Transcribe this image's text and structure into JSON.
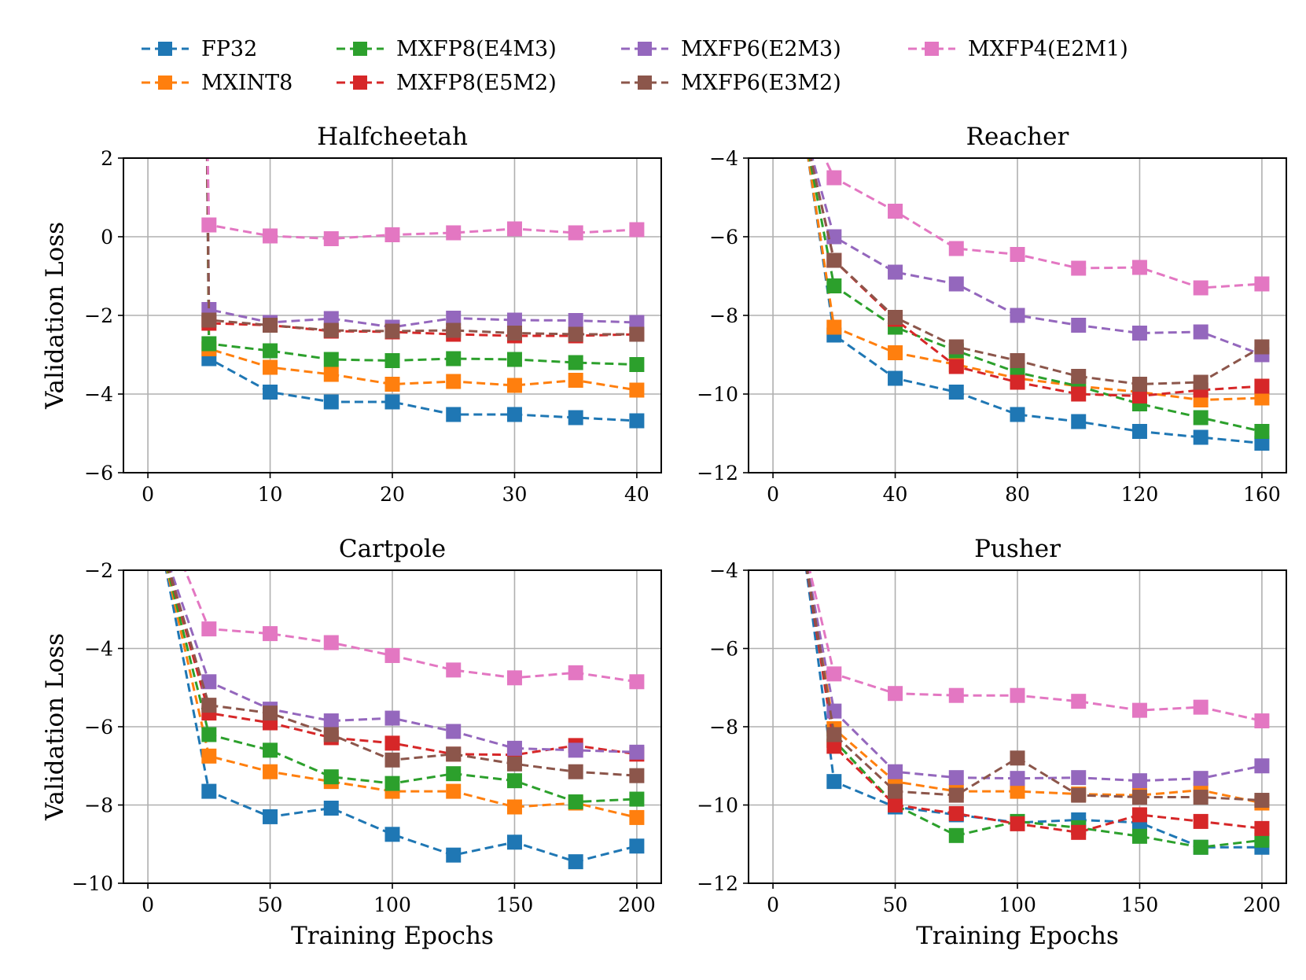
{
  "legend": [
    {
      "key": "fp32",
      "label": "FP32",
      "color": "#1f77b4"
    },
    {
      "key": "mxint8",
      "label": "MXINT8",
      "color": "#ff7f0e"
    },
    {
      "key": "e4m3",
      "label": "MXFP8(E4M3)",
      "color": "#2ca02c"
    },
    {
      "key": "e5m2",
      "label": "MXFP8(E5M2)",
      "color": "#d62728"
    },
    {
      "key": "e2m3",
      "label": "MXFP6(E2M3)",
      "color": "#9467bd"
    },
    {
      "key": "e3m2",
      "label": "MXFP6(E3M2)",
      "color": "#8c564b"
    },
    {
      "key": "mxfp4",
      "label": "MXFP4(E2M1)",
      "color": "#e377c2"
    }
  ],
  "chart_data": [
    {
      "type": "line",
      "title": "Halfcheetah",
      "ylabel": "Validation Loss",
      "xlabel": "",
      "xlim": [
        -2,
        42
      ],
      "ylim": [
        -6,
        2
      ],
      "xticks": [
        0,
        10,
        20,
        30,
        40
      ],
      "yticks": [
        -6,
        -4,
        -2,
        0,
        2
      ],
      "ytick_labels": [
        "−6",
        "−4",
        "−2",
        "0",
        "2"
      ],
      "x": [
        5,
        10,
        15,
        20,
        25,
        30,
        35,
        40
      ],
      "series": [
        {
          "key": "fp32",
          "name": "FP32",
          "lead": [
            [
              4.8,
              3.5
            ]
          ],
          "values": [
            -3.1,
            -3.95,
            -4.2,
            -4.2,
            -4.52,
            -4.52,
            -4.6,
            -4.68
          ]
        },
        {
          "key": "mxint8",
          "name": "MXINT8",
          "lead": [
            [
              4.8,
              3.5
            ]
          ],
          "values": [
            -2.85,
            -3.32,
            -3.5,
            -3.75,
            -3.68,
            -3.78,
            -3.65,
            -3.9
          ]
        },
        {
          "key": "e4m3",
          "name": "MXFP8(E4M3)",
          "lead": [
            [
              4.8,
              3.5
            ]
          ],
          "values": [
            -2.72,
            -2.9,
            -3.12,
            -3.15,
            -3.1,
            -3.12,
            -3.2,
            -3.25
          ]
        },
        {
          "key": "e5m2",
          "name": "MXFP8(E5M2)",
          "lead": [
            [
              4.8,
              3.5
            ]
          ],
          "values": [
            -2.2,
            -2.25,
            -2.4,
            -2.42,
            -2.48,
            -2.52,
            -2.52,
            -2.48
          ]
        },
        {
          "key": "e2m3",
          "name": "MXFP6(E2M3)",
          "lead": [
            [
              4.8,
              3.5
            ]
          ],
          "values": [
            -1.85,
            -2.18,
            -2.08,
            -2.3,
            -2.07,
            -2.12,
            -2.13,
            -2.18
          ]
        },
        {
          "key": "e3m2",
          "name": "MXFP6(E3M2)",
          "lead": [
            [
              4.8,
              3.5
            ]
          ],
          "values": [
            -2.12,
            -2.25,
            -2.38,
            -2.4,
            -2.38,
            -2.45,
            -2.48,
            -2.48
          ]
        },
        {
          "key": "mxfp4",
          "name": "MXFP4(E2M1)",
          "lead": [
            [
              4.8,
              3.5
            ]
          ],
          "values": [
            0.3,
            0.02,
            -0.05,
            0.05,
            0.1,
            0.2,
            0.1,
            0.18
          ]
        }
      ]
    },
    {
      "type": "line",
      "title": "Reacher",
      "ylabel": "",
      "xlabel": "",
      "xlim": [
        -8,
        168
      ],
      "ylim": [
        -12,
        -4
      ],
      "xticks": [
        0,
        40,
        80,
        120,
        160
      ],
      "yticks": [
        -12,
        -10,
        -8,
        -6,
        -4
      ],
      "ytick_labels": [
        "−12",
        "−10",
        "−8",
        "−6",
        "−4"
      ],
      "x": [
        20,
        40,
        60,
        80,
        100,
        120,
        140,
        160
      ],
      "series": [
        {
          "key": "fp32",
          "name": "FP32",
          "lead": [
            [
              10,
              -3.2
            ]
          ],
          "values": [
            -8.5,
            -9.6,
            -9.95,
            -10.52,
            -10.7,
            -10.95,
            -11.1,
            -11.25
          ]
        },
        {
          "key": "mxint8",
          "name": "MXINT8",
          "lead": [
            [
              10,
              -3.2
            ]
          ],
          "values": [
            -8.3,
            -8.95,
            -9.25,
            -9.6,
            -9.8,
            -9.95,
            -10.15,
            -10.1
          ]
        },
        {
          "key": "e4m3",
          "name": "MXFP8(E4M3)",
          "lead": [
            [
              10,
              -3.2
            ]
          ],
          "values": [
            -7.25,
            -8.3,
            -8.9,
            -9.45,
            -9.8,
            -10.25,
            -10.6,
            -10.95
          ]
        },
        {
          "key": "e5m2",
          "name": "MXFP8(E5M2)",
          "lead": [
            [
              10,
              -3.2
            ]
          ],
          "values": [
            -6.6,
            -8.1,
            -9.3,
            -9.7,
            -10.0,
            -10.05,
            -9.9,
            -9.8
          ]
        },
        {
          "key": "e2m3",
          "name": "MXFP6(E2M3)",
          "lead": [
            [
              10,
              -3.2
            ]
          ],
          "values": [
            -6.0,
            -6.9,
            -7.2,
            -8.0,
            -8.25,
            -8.45,
            -8.42,
            -9.0
          ]
        },
        {
          "key": "e3m2",
          "name": "MXFP6(E3M2)",
          "lead": [
            [
              10,
              -3.2
            ]
          ],
          "values": [
            -6.6,
            -8.05,
            -8.8,
            -9.15,
            -9.55,
            -9.75,
            -9.7,
            -8.8
          ]
        },
        {
          "key": "mxfp4",
          "name": "MXFP4(E2M1)",
          "lead": [
            [
              12,
              -3.2
            ]
          ],
          "values": [
            -4.5,
            -5.35,
            -6.3,
            -6.45,
            -6.8,
            -6.78,
            -7.3,
            -7.2
          ]
        }
      ]
    },
    {
      "type": "line",
      "title": "Cartpole",
      "ylabel": "Validation Loss",
      "xlabel": "Training Epochs",
      "xlim": [
        -10,
        210
      ],
      "ylim": [
        -10,
        -2
      ],
      "xticks": [
        0,
        50,
        100,
        150,
        200
      ],
      "yticks": [
        -10,
        -8,
        -6,
        -4,
        -2
      ],
      "ytick_labels": [
        "−10",
        "−8",
        "−6",
        "−4",
        "−2"
      ],
      "x": [
        25,
        50,
        75,
        100,
        125,
        150,
        175,
        200
      ],
      "series": [
        {
          "key": "fp32",
          "name": "FP32",
          "lead": [
            [
              5,
              -1.2
            ]
          ],
          "values": [
            -7.65,
            -8.3,
            -8.08,
            -8.75,
            -9.28,
            -8.95,
            -9.45,
            -9.05
          ]
        },
        {
          "key": "mxint8",
          "name": "MXINT8",
          "lead": [
            [
              5,
              -1.2
            ]
          ],
          "values": [
            -6.75,
            -7.15,
            -7.4,
            -7.65,
            -7.65,
            -8.05,
            -7.95,
            -8.32
          ]
        },
        {
          "key": "e4m3",
          "name": "MXFP8(E4M3)",
          "lead": [
            [
              5,
              -1.2
            ]
          ],
          "values": [
            -6.2,
            -6.6,
            -7.28,
            -7.45,
            -7.2,
            -7.38,
            -7.92,
            -7.85
          ]
        },
        {
          "key": "e5m2",
          "name": "MXFP8(E5M2)",
          "lead": [
            [
              5,
              -1.2
            ]
          ],
          "values": [
            -5.65,
            -5.9,
            -6.28,
            -6.42,
            -6.7,
            -6.72,
            -6.48,
            -6.7
          ]
        },
        {
          "key": "e2m3",
          "name": "MXFP6(E2M3)",
          "lead": [
            [
              5,
              -1.2
            ]
          ],
          "values": [
            -4.85,
            -5.55,
            -5.85,
            -5.78,
            -6.12,
            -6.55,
            -6.6,
            -6.65
          ]
        },
        {
          "key": "e3m2",
          "name": "MXFP6(E3M2)",
          "lead": [
            [
              5,
              -1.2
            ]
          ],
          "values": [
            -5.45,
            -5.65,
            -6.2,
            -6.85,
            -6.7,
            -6.95,
            -7.15,
            -7.25
          ]
        },
        {
          "key": "mxfp4",
          "name": "MXFP4(E2M1)",
          "lead": [
            [
              10,
              -1.2
            ]
          ],
          "values": [
            -3.5,
            -3.62,
            -3.85,
            -4.18,
            -4.55,
            -4.75,
            -4.62,
            -4.85
          ]
        }
      ]
    },
    {
      "type": "line",
      "title": "Pusher",
      "ylabel": "",
      "xlabel": "Training Epochs",
      "xlim": [
        -10,
        210
      ],
      "ylim": [
        -12,
        -4
      ],
      "xticks": [
        0,
        50,
        100,
        150,
        200
      ],
      "yticks": [
        -12,
        -10,
        -8,
        -6,
        -4
      ],
      "ytick_labels": [
        "−12",
        "−10",
        "−8",
        "−6",
        "−4"
      ],
      "x": [
        25,
        50,
        75,
        100,
        125,
        150,
        175,
        200
      ],
      "series": [
        {
          "key": "fp32",
          "name": "FP32",
          "lead": [
            [
              12,
              -3.2
            ]
          ],
          "values": [
            -9.4,
            -10.05,
            -10.25,
            -10.45,
            -10.38,
            -10.45,
            -11.08,
            -11.08
          ]
        },
        {
          "key": "mxint8",
          "name": "MXINT8",
          "lead": [
            [
              12,
              -3.2
            ]
          ],
          "values": [
            -8.05,
            -9.4,
            -9.65,
            -9.65,
            -9.72,
            -9.75,
            -9.62,
            -9.95
          ]
        },
        {
          "key": "e4m3",
          "name": "MXFP8(E4M3)",
          "lead": [
            [
              12,
              -3.2
            ]
          ],
          "values": [
            -8.35,
            -10.0,
            -10.78,
            -10.42,
            -10.58,
            -10.8,
            -11.08,
            -10.9
          ]
        },
        {
          "key": "e5m2",
          "name": "MXFP8(E5M2)",
          "lead": [
            [
              12,
              -3.2
            ]
          ],
          "values": [
            -8.5,
            -10.0,
            -10.22,
            -10.48,
            -10.7,
            -10.25,
            -10.42,
            -10.6
          ]
        },
        {
          "key": "e2m3",
          "name": "MXFP6(E2M3)",
          "lead": [
            [
              12,
              -3.2
            ]
          ],
          "values": [
            -7.6,
            -9.15,
            -9.3,
            -9.32,
            -9.3,
            -9.38,
            -9.32,
            -9.0
          ]
        },
        {
          "key": "e3m2",
          "name": "MXFP6(E3M2)",
          "lead": [
            [
              12,
              -3.2
            ]
          ],
          "values": [
            -8.2,
            -9.65,
            -9.75,
            -8.8,
            -9.75,
            -9.8,
            -9.8,
            -9.88
          ]
        },
        {
          "key": "mxfp4",
          "name": "MXFP4(E2M1)",
          "lead": [
            [
              12,
              -3.2
            ]
          ],
          "values": [
            -6.65,
            -7.15,
            -7.2,
            -7.2,
            -7.35,
            -7.58,
            -7.5,
            -7.85
          ]
        }
      ]
    }
  ]
}
